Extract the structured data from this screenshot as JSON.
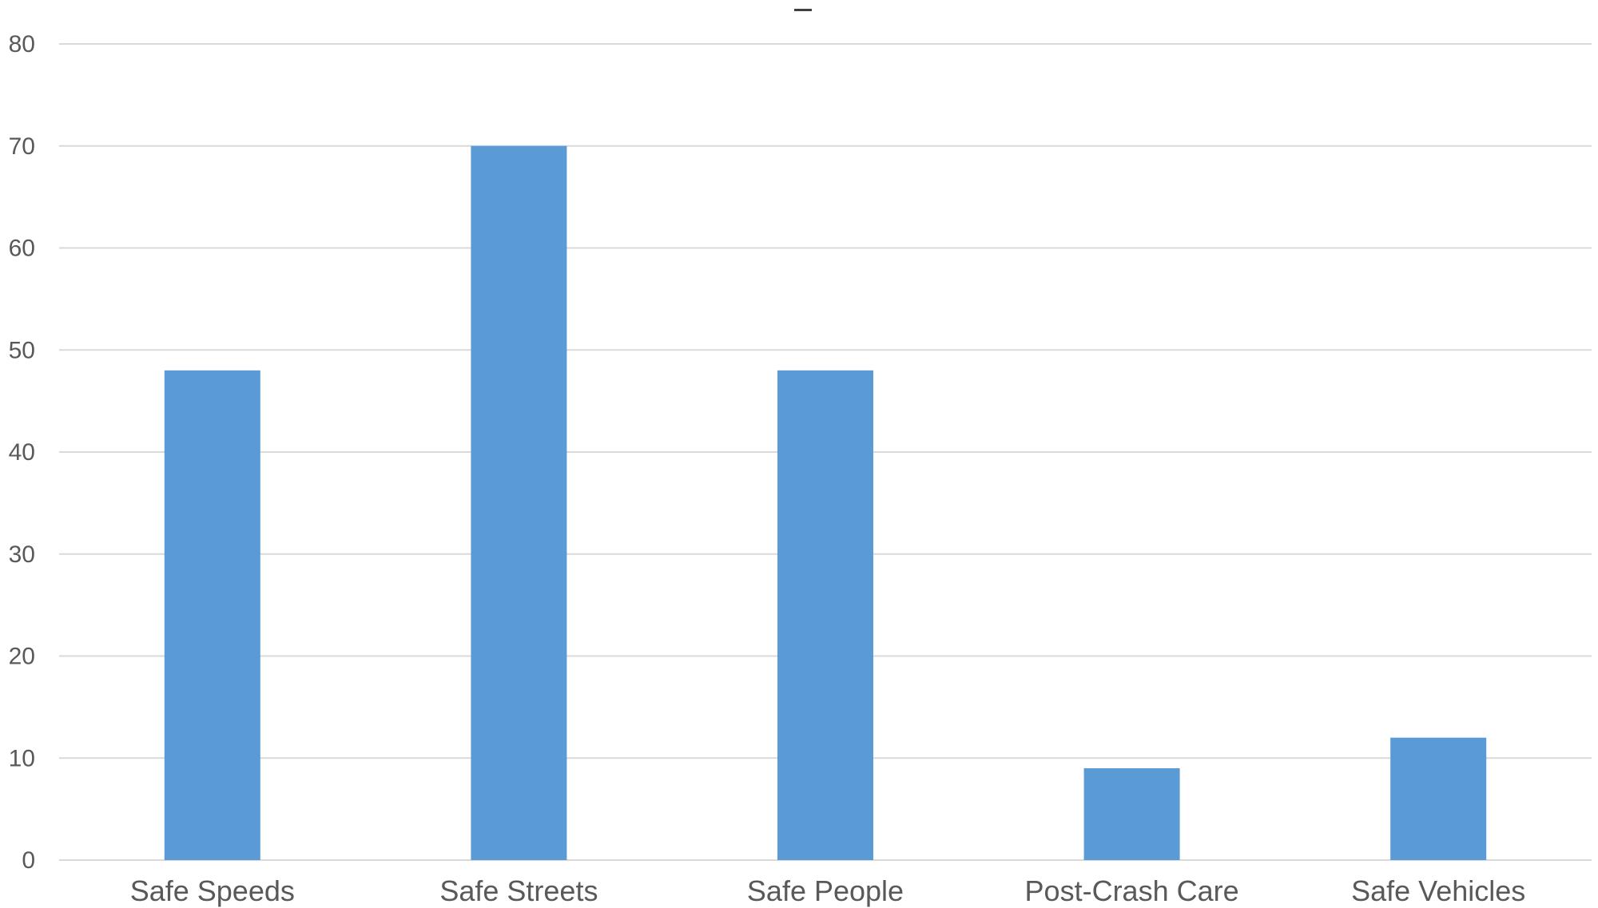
{
  "chart_data": {
    "type": "bar",
    "title": "",
    "xlabel": "",
    "ylabel": "",
    "categories": [
      "Safe Speeds",
      "Safe Streets",
      "Safe People",
      "Post-Crash Care",
      "Safe Vehicles"
    ],
    "values": [
      48,
      70,
      48,
      9,
      12
    ],
    "ylim": [
      0,
      80
    ],
    "yticks": [
      "0",
      "10",
      "20",
      "30",
      "40",
      "50",
      "60",
      "70",
      "80"
    ],
    "grid": true,
    "legend": "none",
    "colors": {
      "bar": "#5B9BD5",
      "grid": "#D9D9D9",
      "text": "#595959",
      "title_mark": "#404040"
    }
  }
}
